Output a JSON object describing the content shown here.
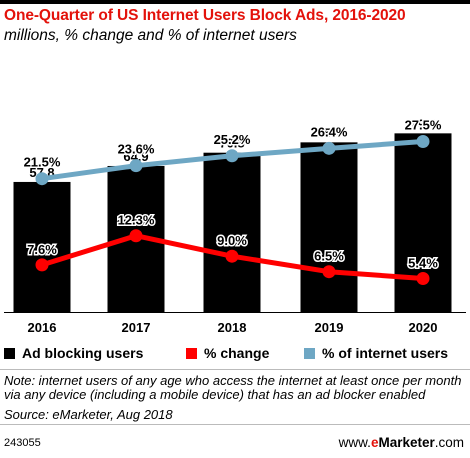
{
  "title": "One-Quarter of US Internet Users Block Ads, 2016-2020",
  "subtitle": "millions, % change and % of internet users",
  "chart_data": {
    "type": "bar",
    "categories": [
      "2016",
      "2017",
      "2018",
      "2019",
      "2020"
    ],
    "bar_series": {
      "name": "Ad blocking users",
      "values": [
        57.8,
        64.9,
        70.8,
        75.4,
        79.4
      ],
      "labels": [
        "57.8",
        "64.9",
        "70.8",
        "75.4",
        "79.4"
      ],
      "color": "#000000"
    },
    "line_series": [
      {
        "name": "% change",
        "values": [
          7.6,
          12.3,
          9.0,
          6.5,
          5.4
        ],
        "labels": [
          "7.6%",
          "12.3%",
          "9.0%",
          "6.5%",
          "5.4%"
        ],
        "color": "#ff0000"
      },
      {
        "name": "% of internet users",
        "values": [
          21.5,
          23.6,
          25.2,
          26.4,
          27.5
        ],
        "labels": [
          "21.5%",
          "23.6%",
          "25.2%",
          "26.4%",
          "27.5%"
        ],
        "color": "#6ea7c4"
      }
    ],
    "legend_position": "bottom"
  },
  "legend": [
    {
      "label": "Ad blocking users",
      "color": "#000000"
    },
    {
      "label": "% change",
      "color": "#ff0000"
    },
    {
      "label": "% of internet users",
      "color": "#6ea7c4"
    }
  ],
  "note": "Note: internet users of any age who access the internet at least once per month via any device (including a mobile device) that has an ad blocker enabled",
  "source": "Source: eMarketer, Aug 2018",
  "chart_id": "243055",
  "brand": {
    "www": "www.",
    "e": "e",
    "name": "Marketer",
    "suffix": ".com"
  }
}
